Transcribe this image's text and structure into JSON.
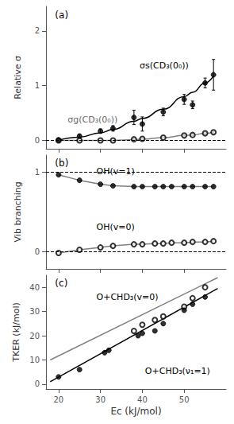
{
  "chart_data": [
    {
      "type": "line",
      "title": "(a)",
      "ylabel": "Relative σ",
      "xlim": [
        17,
        60
      ],
      "xticks": [
        20,
        30,
        40,
        50
      ],
      "ylim": [
        -0.15,
        2.45
      ],
      "yticks": [
        0,
        1,
        2
      ],
      "tick_labels": "y",
      "grid": false,
      "hlines": [
        0
      ],
      "series": [
        {
          "type": "line",
          "line_style": "smooth",
          "color": "gray",
          "x": [
            20,
            25,
            30,
            33,
            38,
            40,
            45,
            50,
            52,
            55,
            57
          ],
          "values": [
            0.0,
            0.0,
            0.0,
            0.002,
            0.015,
            0.025,
            0.05,
            0.09,
            0.1,
            0.13,
            0.15
          ]
        },
        {
          "type": "scatter",
          "marker": "emptyCircle",
          "color": "black",
          "x": [
            20,
            25,
            30,
            33,
            38,
            40,
            45,
            50,
            52,
            55,
            57
          ],
          "values": [
            0.0,
            0.0,
            0.0,
            0.0,
            0.02,
            0.03,
            0.05,
            0.09,
            0.1,
            0.13,
            0.15
          ],
          "yerr": [
            0.005,
            0.005,
            0.005,
            0.005,
            0.008,
            0.008,
            0.008,
            0.012,
            0.012,
            0.012,
            0.015
          ]
        },
        {
          "type": "line",
          "line_style": "smooth",
          "color": "black",
          "x": [
            20,
            25,
            30,
            33,
            38,
            40,
            45,
            50,
            52,
            55,
            57
          ],
          "values": [
            0.005,
            0.06,
            0.14,
            0.2,
            0.35,
            0.4,
            0.57,
            0.8,
            0.88,
            1.05,
            1.18
          ]
        },
        {
          "type": "scatter",
          "marker": "circle",
          "color": "black",
          "x": [
            20,
            25,
            30,
            33,
            38,
            40,
            45,
            50,
            52,
            55,
            57
          ],
          "values": [
            0.01,
            0.08,
            0.17,
            0.22,
            0.42,
            0.3,
            0.52,
            0.75,
            0.65,
            1.05,
            1.2
          ],
          "yerr": [
            0.01,
            0.03,
            0.04,
            0.05,
            0.13,
            0.13,
            0.07,
            0.09,
            0.07,
            0.09,
            0.28
          ]
        }
      ],
      "annotations": [
        {
          "text": "σs(CD₃(0₀))",
          "color": "black"
        },
        {
          "text": "σg(CD₃(0₀))",
          "color": "dimgray"
        }
      ]
    },
    {
      "type": "line",
      "title": "(b)",
      "ylabel": "Vib branching",
      "xlim": [
        17,
        60
      ],
      "xticks": [
        20,
        30,
        40,
        50
      ],
      "ylim": [
        -0.22,
        1.22
      ],
      "yticks": [
        0,
        1
      ],
      "tick_labels": "y",
      "grid": false,
      "hlines": [
        0,
        1
      ],
      "series": [
        {
          "type": "line",
          "line_style": "solid",
          "color": "gray",
          "x": [
            20,
            25,
            30,
            33,
            38,
            40,
            43,
            45,
            47,
            50,
            52,
            55,
            57
          ],
          "values": [
            0.97,
            0.9,
            0.85,
            0.83,
            0.82,
            0.82,
            0.82,
            0.82,
            0.82,
            0.82,
            0.82,
            0.82,
            0.82
          ]
        },
        {
          "type": "scatter",
          "marker": "circle",
          "color": "black",
          "x": [
            20,
            25,
            30,
            33,
            38,
            40,
            43,
            45,
            47,
            50,
            52,
            55,
            57
          ],
          "values": [
            0.97,
            0.9,
            0.85,
            0.83,
            0.82,
            0.82,
            0.82,
            0.82,
            0.82,
            0.82,
            0.82,
            0.82,
            0.82
          ]
        },
        {
          "type": "line",
          "line_style": "solid",
          "color": "gray",
          "x": [
            20,
            25,
            30,
            33,
            38,
            40,
            43,
            45,
            47,
            50,
            52,
            55,
            57
          ],
          "values": [
            -0.02,
            0.02,
            0.05,
            0.07,
            0.09,
            0.09,
            0.1,
            0.1,
            0.11,
            0.11,
            0.12,
            0.12,
            0.13
          ]
        },
        {
          "type": "scatter",
          "marker": "emptyCircle",
          "color": "black",
          "x": [
            20,
            25,
            30,
            33,
            38,
            40,
            43,
            45,
            47,
            50,
            52,
            55,
            57
          ],
          "values": [
            -0.02,
            0.02,
            0.05,
            0.07,
            0.09,
            0.09,
            0.1,
            0.1,
            0.11,
            0.11,
            0.12,
            0.12,
            0.13
          ]
        }
      ],
      "annotations": [
        {
          "text": "OH(v=1)",
          "color": "black"
        },
        {
          "text": "OH(v=0)",
          "color": "black"
        }
      ]
    },
    {
      "type": "line",
      "title": "(c)",
      "ylabel": "TKER (kJ/mol)",
      "xlabel": "Ec (kJ/mol)",
      "xlim": [
        17,
        60
      ],
      "xticks": [
        20,
        30,
        40,
        50
      ],
      "ylim": [
        -2,
        45
      ],
      "yticks": [
        0,
        10,
        20,
        30,
        40
      ],
      "grid": false,
      "series": [
        {
          "type": "line",
          "line_style": "solid",
          "color": "gray",
          "x": [
            18,
            58
          ],
          "values": [
            10.0,
            44.0
          ]
        },
        {
          "type": "scatter",
          "marker": "emptyCircle",
          "color": "black",
          "x": [
            38,
            40,
            43,
            45,
            50,
            52,
            55
          ],
          "values": [
            22.0,
            24.5,
            26.5,
            28.0,
            32.0,
            35.5,
            40.0
          ]
        },
        {
          "type": "line",
          "line_style": "solid",
          "color": "black",
          "x": [
            18,
            58
          ],
          "values": [
            1.0,
            39.5
          ]
        },
        {
          "type": "scatter",
          "marker": "circle",
          "color": "black",
          "x": [
            20,
            25,
            31,
            32,
            39,
            40,
            43,
            45,
            50,
            52,
            55
          ],
          "values": [
            3.0,
            6.0,
            13.0,
            14.0,
            20.0,
            21.0,
            22.0,
            25.0,
            30.5,
            33.0,
            36.0
          ]
        }
      ],
      "annotations": [
        {
          "text": "O+CHD₃(v=0)",
          "color": "black"
        },
        {
          "text": "O+CHD₃(ν₁=1)",
          "color": "black"
        }
      ]
    }
  ]
}
